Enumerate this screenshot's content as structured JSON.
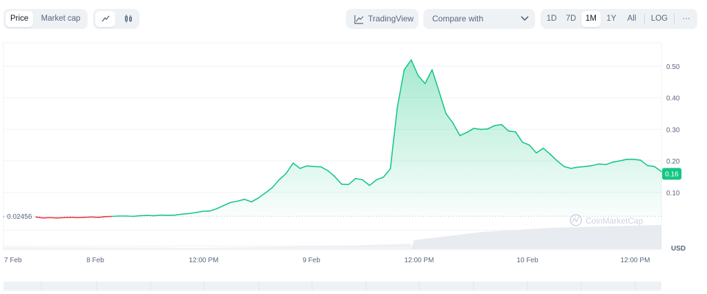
{
  "toolbar": {
    "view_tabs": [
      {
        "label": "Price",
        "active": true
      },
      {
        "label": "Market cap",
        "active": false
      }
    ],
    "chart_style_icons": [
      "line-chart-icon",
      "candlestick-icon"
    ],
    "tradingview_label": "TradingView",
    "compare_placeholder": "Compare with",
    "ranges": [
      "1D",
      "7D",
      "1M",
      "1Y",
      "All"
    ],
    "active_range": "1M",
    "log_label": "LOG",
    "more_label": "···"
  },
  "chart_data": {
    "type": "area",
    "x_ticks": [
      "7 Feb",
      "8 Feb",
      "12:00 PM",
      "9 Feb",
      "12:00 PM",
      "10 Feb",
      "12:00 PM"
    ],
    "y_ticks": [
      "0.10",
      "0.20",
      "0.30",
      "0.40",
      "0.50"
    ],
    "ylim": [
      -0.08,
      0.57
    ],
    "unit": "USD",
    "reference_line": {
      "value": 0.02456,
      "label": "0.02456"
    },
    "current_price": {
      "value": 0.16,
      "label": "0.16"
    },
    "watermark": "CoinMarketCap",
    "colors": {
      "up": "#16c784",
      "down": "#ea3943",
      "fill": "#16c784",
      "grid": "#eff2f5",
      "volume": "#e6e9ee"
    },
    "series": [
      {
        "values": [
          [
            0,
            0.022
          ],
          [
            1,
            0.019
          ],
          [
            2,
            0.02
          ],
          [
            3,
            0.019
          ],
          [
            4,
            0.02
          ],
          [
            5,
            0.021
          ],
          [
            6,
            0.02
          ],
          [
            7,
            0.021
          ],
          [
            8,
            0.022
          ],
          [
            9,
            0.021
          ],
          [
            10,
            0.023
          ],
          [
            11,
            0.024
          ],
          [
            12,
            0.025
          ],
          [
            13,
            0.025
          ],
          [
            14,
            0.024
          ],
          [
            15,
            0.026
          ],
          [
            16,
            0.027
          ],
          [
            17,
            0.026
          ],
          [
            18,
            0.028
          ],
          [
            19,
            0.027
          ],
          [
            20,
            0.028
          ],
          [
            21,
            0.031
          ],
          [
            22,
            0.033
          ],
          [
            23,
            0.036
          ],
          [
            24,
            0.04
          ],
          [
            25,
            0.041
          ],
          [
            26,
            0.048
          ],
          [
            27,
            0.058
          ],
          [
            28,
            0.068
          ],
          [
            29,
            0.072
          ],
          [
            30,
            0.078
          ],
          [
            31,
            0.07
          ],
          [
            32,
            0.082
          ],
          [
            33,
            0.098
          ],
          [
            34,
            0.115
          ],
          [
            35,
            0.14
          ],
          [
            36,
            0.16
          ],
          [
            37,
            0.193
          ],
          [
            38,
            0.176
          ],
          [
            39,
            0.184
          ],
          [
            40,
            0.182
          ],
          [
            41,
            0.181
          ],
          [
            42,
            0.169
          ],
          [
            43,
            0.15
          ],
          [
            44,
            0.126
          ],
          [
            45,
            0.125
          ],
          [
            46,
            0.144
          ],
          [
            47,
            0.14
          ],
          [
            48,
            0.122
          ],
          [
            49,
            0.14
          ],
          [
            50,
            0.148
          ],
          [
            51,
            0.175
          ],
          [
            52,
            0.37
          ],
          [
            53,
            0.489
          ],
          [
            54,
            0.52
          ],
          [
            55,
            0.47
          ],
          [
            56,
            0.445
          ],
          [
            57,
            0.489
          ],
          [
            58,
            0.42
          ],
          [
            59,
            0.35
          ],
          [
            60,
            0.32
          ],
          [
            61,
            0.28
          ],
          [
            62,
            0.29
          ],
          [
            63,
            0.303
          ],
          [
            64,
            0.3
          ],
          [
            65,
            0.301
          ],
          [
            66,
            0.312
          ],
          [
            67,
            0.315
          ],
          [
            68,
            0.295
          ],
          [
            69,
            0.292
          ],
          [
            70,
            0.259
          ],
          [
            71,
            0.25
          ],
          [
            72,
            0.225
          ],
          [
            73,
            0.24
          ],
          [
            74,
            0.221
          ],
          [
            75,
            0.2
          ],
          [
            76,
            0.182
          ],
          [
            77,
            0.176
          ],
          [
            78,
            0.18
          ],
          [
            79,
            0.182
          ],
          [
            80,
            0.185
          ],
          [
            81,
            0.19
          ],
          [
            82,
            0.188
          ],
          [
            83,
            0.196
          ],
          [
            84,
            0.2
          ],
          [
            85,
            0.205
          ],
          [
            86,
            0.205
          ],
          [
            87,
            0.202
          ],
          [
            88,
            0.185
          ],
          [
            89,
            0.182
          ],
          [
            90,
            0.166
          ]
        ]
      }
    ]
  }
}
